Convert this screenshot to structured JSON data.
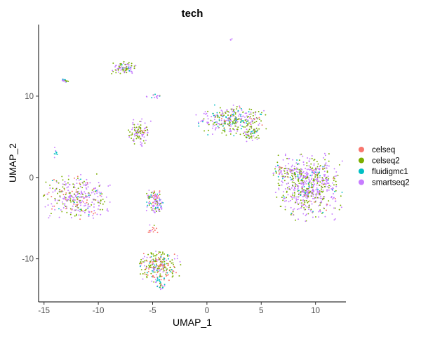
{
  "chart_data": {
    "type": "scatter",
    "title": "tech",
    "xlabel": "UMAP_1",
    "ylabel": "UMAP_2",
    "xlim": [
      -15.5,
      12.8
    ],
    "ylim": [
      -15.3,
      18.8
    ],
    "x_ticks": [
      -15,
      -10,
      -5,
      0,
      5,
      10
    ],
    "y_ticks": [
      -10,
      0,
      10
    ],
    "grid": false,
    "legend": {
      "placement": "right",
      "title": ""
    },
    "series": [
      {
        "name": "celseq",
        "color": "#F8766D"
      },
      {
        "name": "celseq2",
        "color": "#7CAE00"
      },
      {
        "name": "fluidigmc1",
        "color": "#00BFC4"
      },
      {
        "name": "smartseq2",
        "color": "#C77CFF"
      }
    ],
    "clusters": [
      {
        "center": [
          -12.0,
          -2.4
        ],
        "spread": [
          1.4,
          1.3
        ],
        "n": 330,
        "mix": [
          0.12,
          0.28,
          0.05,
          0.55
        ]
      },
      {
        "center": [
          -4.8,
          -3.0
        ],
        "spread": [
          0.35,
          0.7
        ],
        "n": 120,
        "mix": [
          0.08,
          0.25,
          0.07,
          0.6
        ]
      },
      {
        "center": [
          -4.4,
          -10.9
        ],
        "spread": [
          0.9,
          0.9
        ],
        "n": 230,
        "mix": [
          0.25,
          0.45,
          0.1,
          0.2
        ]
      },
      {
        "center": [
          -4.3,
          -13.0
        ],
        "spread": [
          0.3,
          0.4
        ],
        "n": 30,
        "mix": [
          0.05,
          0.15,
          0.3,
          0.5
        ]
      },
      {
        "center": [
          -5.1,
          -6.4
        ],
        "spread": [
          0.3,
          0.3
        ],
        "n": 15,
        "mix": [
          0.8,
          0.05,
          0.05,
          0.1
        ]
      },
      {
        "center": [
          -7.6,
          13.5
        ],
        "spread": [
          0.6,
          0.35
        ],
        "n": 85,
        "mix": [
          0.05,
          0.35,
          0.1,
          0.5
        ]
      },
      {
        "center": [
          -13.1,
          11.9
        ],
        "spread": [
          0.25,
          0.1
        ],
        "n": 18,
        "mix": [
          0.0,
          0.1,
          0.3,
          0.6
        ]
      },
      {
        "center": [
          -6.2,
          5.5
        ],
        "spread": [
          0.5,
          0.8
        ],
        "n": 100,
        "mix": [
          0.03,
          0.45,
          0.02,
          0.5
        ]
      },
      {
        "center": [
          -4.9,
          10.0
        ],
        "spread": [
          0.4,
          0.12
        ],
        "n": 15,
        "mix": [
          0.0,
          0.1,
          0.2,
          0.7
        ]
      },
      {
        "center": [
          -13.9,
          3.0
        ],
        "spread": [
          0.1,
          0.5
        ],
        "n": 8,
        "mix": [
          0.0,
          0.2,
          0.3,
          0.5
        ]
      },
      {
        "center": [
          2.3,
          7.0
        ],
        "spread": [
          1.5,
          0.9
        ],
        "n": 330,
        "mix": [
          0.05,
          0.35,
          0.15,
          0.45
        ]
      },
      {
        "center": [
          4.1,
          5.3
        ],
        "spread": [
          0.4,
          0.4
        ],
        "n": 45,
        "mix": [
          0.05,
          0.5,
          0.1,
          0.35
        ]
      },
      {
        "center": [
          9.4,
          -1.2
        ],
        "spread": [
          1.4,
          1.9
        ],
        "n": 650,
        "mix": [
          0.03,
          0.35,
          0.07,
          0.55
        ]
      },
      {
        "center": [
          7.2,
          0.8
        ],
        "spread": [
          0.5,
          0.5
        ],
        "n": 60,
        "mix": [
          0.05,
          0.3,
          0.05,
          0.6
        ]
      },
      {
        "center": [
          2.2,
          17.0
        ],
        "spread": [
          0.1,
          0.05
        ],
        "n": 3,
        "mix": [
          0.0,
          0.0,
          0.0,
          1.0
        ]
      }
    ]
  }
}
